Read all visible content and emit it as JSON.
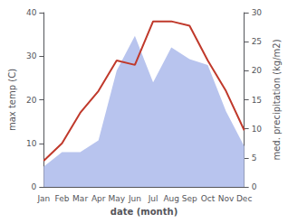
{
  "chart_data": {
    "type": "line",
    "xlabel": "date (month)",
    "ylabel": "max temp (C)",
    "y2label": "med. precipitation (kg/m2)",
    "categories": [
      "Jan",
      "Feb",
      "Mar",
      "Apr",
      "May",
      "Jun",
      "Jul",
      "Aug",
      "Sep",
      "Oct",
      "Nov",
      "Dec"
    ],
    "series": [
      {
        "type": "area",
        "axis": "y2",
        "color": "#b8c4ee",
        "values": [
          3.5,
          6,
          6,
          8,
          20,
          26,
          18,
          24,
          22,
          21,
          13,
          7
        ]
      },
      {
        "type": "line",
        "color": "#c0392b",
        "values": [
          6,
          10,
          17,
          22,
          29,
          28,
          38,
          38,
          37,
          29,
          22,
          13
        ]
      }
    ],
    "ylim": [
      0,
      40
    ],
    "yticks": [
      0,
      10,
      20,
      30,
      40
    ],
    "y2lim": [
      0,
      30
    ],
    "y2ticks": [
      0,
      5,
      10,
      15,
      20,
      25,
      30
    ],
    "grid": false
  }
}
